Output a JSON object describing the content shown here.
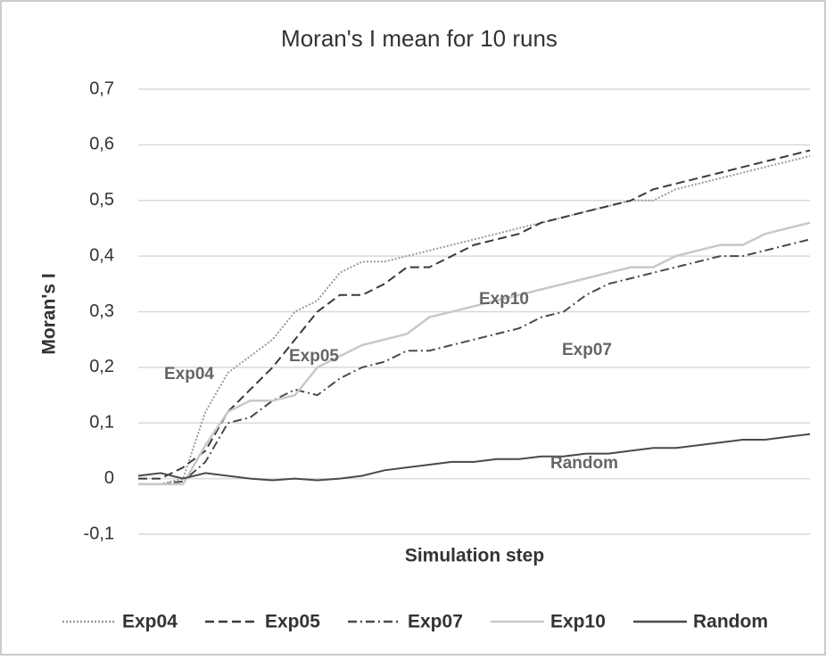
{
  "chart_data": {
    "type": "line",
    "title": "Moran's I mean for 10 runs",
    "xlabel": "Simulation step",
    "ylabel": "Moran's I",
    "categories": [
      null,
      null,
      null,
      null,
      null,
      null,
      null,
      null,
      null,
      null,
      null,
      null,
      null,
      null,
      null,
      null,
      null,
      null,
      null,
      null,
      null,
      null,
      null,
      null,
      null,
      null,
      null,
      null,
      null,
      null,
      null
    ],
    "series": [
      {
        "name": "Exp04",
        "color": "#9a9a9a",
        "dash": "dotted",
        "values": [
          -0.01,
          -0.01,
          0.0,
          0.12,
          0.19,
          0.22,
          0.25,
          0.3,
          0.32,
          0.37,
          0.39,
          0.39,
          0.4,
          0.41,
          0.42,
          0.43,
          0.44,
          0.45,
          0.46,
          0.47,
          0.48,
          0.49,
          0.5,
          0.5,
          0.52,
          0.53,
          0.54,
          0.55,
          0.56,
          0.57,
          0.58
        ]
      },
      {
        "name": "Exp05",
        "color": "#3a3a3a",
        "dash": "dashed",
        "values": [
          0.0,
          0.0,
          0.02,
          0.05,
          0.12,
          0.16,
          0.2,
          0.25,
          0.3,
          0.33,
          0.33,
          0.35,
          0.38,
          0.38,
          0.4,
          0.42,
          0.43,
          0.44,
          0.46,
          0.47,
          0.48,
          0.49,
          0.5,
          0.52,
          0.53,
          0.54,
          0.55,
          0.56,
          0.57,
          0.58,
          0.59
        ]
      },
      {
        "name": "Exp07",
        "color": "#4a4a4a",
        "dash": "dashdot",
        "values": [
          -0.01,
          -0.01,
          -0.005,
          0.03,
          0.1,
          0.11,
          0.14,
          0.16,
          0.15,
          0.18,
          0.2,
          0.21,
          0.23,
          0.23,
          0.24,
          0.25,
          0.26,
          0.27,
          0.29,
          0.3,
          0.33,
          0.35,
          0.36,
          0.37,
          0.38,
          0.39,
          0.4,
          0.4,
          0.41,
          0.42,
          0.43
        ]
      },
      {
        "name": "Exp10",
        "color": "#c8c8c8",
        "dash": "solid",
        "values": [
          -0.01,
          -0.01,
          -0.01,
          0.06,
          0.12,
          0.14,
          0.14,
          0.15,
          0.2,
          0.22,
          0.24,
          0.25,
          0.26,
          0.29,
          0.3,
          0.31,
          0.32,
          0.33,
          0.34,
          0.35,
          0.36,
          0.37,
          0.38,
          0.38,
          0.4,
          0.41,
          0.42,
          0.42,
          0.44,
          0.45,
          0.46
        ]
      },
      {
        "name": "Random",
        "color": "#4a4a4a",
        "dash": "solid",
        "values": [
          0.005,
          0.01,
          0.0,
          0.01,
          0.005,
          0.0,
          -0.003,
          0.0,
          -0.003,
          0.0,
          0.005,
          0.015,
          0.02,
          0.025,
          0.03,
          0.03,
          0.035,
          0.035,
          0.04,
          0.04,
          0.045,
          0.045,
          0.05,
          0.055,
          0.055,
          0.06,
          0.065,
          0.07,
          0.07,
          0.075,
          0.08
        ]
      }
    ],
    "annotations": [
      "Exp04",
      "Exp05",
      "Exp10",
      "Exp07",
      "Random"
    ],
    "ylim": [
      -0.1,
      0.7
    ],
    "yticks": [
      {
        "value": -0.1,
        "label": "-0,1"
      },
      0,
      {
        "value": 0.1,
        "label": "0,1"
      },
      {
        "value": 0.2,
        "label": "0,2"
      },
      {
        "value": 0.3,
        "label": "0,3"
      },
      {
        "value": 0.4,
        "label": "0,4"
      },
      {
        "value": 0.5,
        "label": "0,5"
      },
      {
        "value": 0.6,
        "label": "0,6"
      },
      {
        "value": 0.7,
        "label": "0,7"
      }
    ],
    "grid": true,
    "legend": "bottom"
  }
}
